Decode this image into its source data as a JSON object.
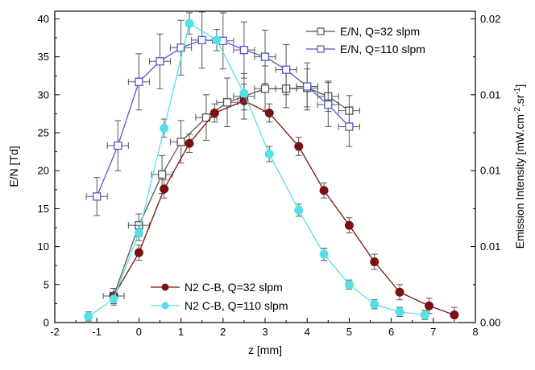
{
  "chart_data": {
    "type": "scatter",
    "xlabel": "z [mm]",
    "ylabel_left": "E/N [Td]",
    "ylabel_right_prefix": "Emission Intensity [mW.cm",
    "ylabel_right_sup1": "-2",
    "ylabel_right_mid": ".sr",
    "ylabel_right_sup2": "-1",
    "ylabel_right_suffix": "]",
    "xlim": [
      -2,
      8
    ],
    "ylim_left": [
      0,
      41
    ],
    "ylim_right": [
      0,
      0.0205
    ],
    "x_ticks": [
      "-2",
      "-1",
      "0",
      "1",
      "2",
      "3",
      "4",
      "5",
      "6",
      "7",
      "8"
    ],
    "y_left_ticks": [
      "0",
      "5",
      "10",
      "15",
      "20",
      "25",
      "30",
      "35",
      "40"
    ],
    "y_right_ticks": [
      {
        "value": 0,
        "label": "0.00"
      },
      {
        "value": 0.005,
        "label": "0.01"
      },
      {
        "value": 0.01,
        "label": "0.01"
      },
      {
        "value": 0.015,
        "label": "0.01"
      },
      {
        "value": 0.02,
        "label": "0.02"
      }
    ],
    "series": [
      {
        "name": "E/N, Q=32 slpm",
        "axis": "left",
        "color": "#555555",
        "marker": "open-square",
        "x": [
          -0.6,
          0.0,
          0.55,
          1.0,
          1.6,
          2.1,
          2.5,
          3.0,
          3.5,
          4.0,
          4.5,
          5.0
        ],
        "y": [
          3.5,
          12.8,
          19.5,
          23.8,
          27.0,
          29.0,
          29.8,
          30.8,
          30.8,
          30.9,
          29.8,
          27.9
        ],
        "xerr": [
          0.25,
          0.25,
          0.25,
          0.25,
          0.25,
          0.25,
          0.25,
          0.25,
          0.25,
          0.25,
          0.25,
          0.25
        ],
        "yerr": [
          1.0,
          1.5,
          2.5,
          2.8,
          3.0,
          3.2,
          3.0,
          3.0,
          2.5,
          2.5,
          2.0,
          2.0
        ]
      },
      {
        "name": "E/N, Q=110 slpm",
        "axis": "left",
        "color": "#5555cc",
        "marker": "open-square",
        "x": [
          -1.0,
          -0.5,
          0.0,
          0.5,
          1.0,
          1.5,
          2.0,
          2.5,
          3.0,
          3.5,
          4.0,
          4.5,
          5.0
        ],
        "y": [
          16.6,
          23.3,
          31.7,
          34.4,
          36.2,
          37.2,
          37.1,
          35.9,
          35.0,
          33.3,
          31.1,
          28.7,
          25.8
        ],
        "xerr": [
          0.25,
          0.25,
          0.25,
          0.25,
          0.25,
          0.25,
          0.25,
          0.25,
          0.25,
          0.25,
          0.25,
          0.25,
          0.25
        ],
        "yerr": [
          2.5,
          3.3,
          3.7,
          3.6,
          3.6,
          3.7,
          3.7,
          3.7,
          3.5,
          3.3,
          3.1,
          2.9,
          2.6
        ]
      },
      {
        "name": "N2 C-B, Q=32 slpm",
        "axis": "right",
        "color": "#7a1010",
        "marker": "filled-circle",
        "x": [
          -0.6,
          0.0,
          0.6,
          1.2,
          1.8,
          2.5,
          3.1,
          3.8,
          4.4,
          5.0,
          5.6,
          6.2,
          6.9,
          7.5
        ],
        "y": [
          0.00175,
          0.0046,
          0.0088,
          0.0118,
          0.0138,
          0.0146,
          0.0138,
          0.0116,
          0.0087,
          0.0064,
          0.004,
          0.002,
          0.0011,
          0.0005
        ],
        "yerr": [
          0.0005,
          0.0005,
          0.0006,
          0.0006,
          0.0006,
          0.0006,
          0.0006,
          0.0006,
          0.0005,
          0.0005,
          0.0005,
          0.0005,
          0.0005,
          0.0005
        ]
      },
      {
        "name": "N2 C-B, Q=110 slpm",
        "axis": "right",
        "color": "#55e0e8",
        "marker": "filled-circle",
        "x": [
          -1.2,
          -0.6,
          0.0,
          0.6,
          1.2,
          1.85,
          2.5,
          3.1,
          3.8,
          4.4,
          5.0,
          5.6,
          6.2,
          6.8
        ],
        "y": [
          0.0004,
          0.00155,
          0.0059,
          0.0128,
          0.0197,
          0.0186,
          0.0151,
          0.0111,
          0.0074,
          0.0045,
          0.0025,
          0.0012,
          0.0007,
          0.0005
        ],
        "yerr": [
          0.0003,
          0.0004,
          0.0005,
          0.0006,
          0.0007,
          0.0007,
          0.0006,
          0.0005,
          0.0004,
          0.0004,
          0.0003,
          0.0003,
          0.0003,
          0.0003
        ]
      }
    ],
    "legend": [
      {
        "position": "top-right",
        "entries": [
          "E/N, Q=32 slpm",
          "E/N, Q=110 slpm"
        ]
      },
      {
        "position": "bottom-left",
        "entries": [
          "N2 C-B, Q=32 slpm",
          "N2 C-B, Q=110 slpm"
        ]
      }
    ]
  }
}
